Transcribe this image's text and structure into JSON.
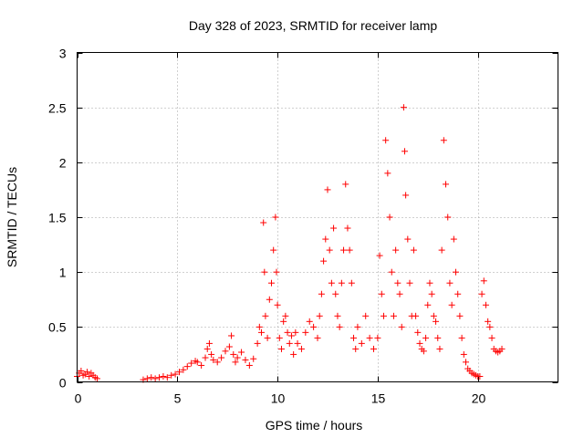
{
  "chart_data": {
    "type": "scatter",
    "title": "Day 328 of 2023, SRMTID for receiver lamp",
    "xlabel": "GPS time / hours",
    "ylabel": "SRMTID / TECUs",
    "xlim": [
      0,
      24
    ],
    "ylim": [
      0,
      3
    ],
    "xticks": [
      0,
      5,
      10,
      15,
      20
    ],
    "xtick_labels": [
      "0",
      "5",
      "10",
      "15",
      "20"
    ],
    "yticks": [
      0,
      0.5,
      1,
      1.5,
      2,
      2.5,
      3
    ],
    "ytick_labels": [
      "0",
      "0.5",
      "1",
      "1.5",
      "2",
      "2.5",
      "3"
    ],
    "grid": true,
    "marker": "+",
    "color": "#ff0000",
    "series": [
      {
        "name": "SRMTID",
        "x": [
          0.0,
          0.1,
          0.2,
          0.3,
          0.4,
          0.5,
          0.6,
          0.7,
          0.8,
          0.9,
          1.0,
          3.3,
          3.5,
          3.7,
          3.9,
          4.1,
          4.3,
          4.5,
          4.7,
          4.9,
          5.1,
          5.3,
          5.5,
          5.7,
          5.9,
          6.0,
          6.2,
          6.4,
          6.5,
          6.6,
          6.7,
          6.8,
          7.0,
          7.2,
          7.4,
          7.6,
          7.7,
          7.8,
          7.9,
          8.0,
          8.2,
          8.4,
          8.6,
          8.8,
          9.0,
          9.1,
          9.2,
          9.3,
          9.35,
          9.4,
          9.5,
          9.6,
          9.7,
          9.8,
          9.9,
          9.95,
          10.0,
          10.1,
          10.2,
          10.3,
          10.4,
          10.5,
          10.6,
          10.7,
          10.8,
          10.9,
          11.0,
          11.2,
          11.4,
          11.6,
          11.8,
          12.0,
          12.1,
          12.2,
          12.3,
          12.4,
          12.5,
          12.6,
          12.7,
          12.8,
          12.9,
          13.0,
          13.1,
          13.2,
          13.3,
          13.4,
          13.5,
          13.6,
          13.7,
          13.8,
          13.9,
          14.0,
          14.2,
          14.4,
          14.6,
          14.8,
          15.0,
          15.1,
          15.2,
          15.3,
          15.4,
          15.5,
          15.6,
          15.7,
          15.8,
          15.9,
          16.0,
          16.1,
          16.2,
          16.3,
          16.35,
          16.4,
          16.5,
          16.6,
          16.7,
          16.8,
          16.9,
          17.0,
          17.1,
          17.2,
          17.3,
          17.4,
          17.5,
          17.6,
          17.7,
          17.8,
          17.9,
          18.0,
          18.1,
          18.2,
          18.3,
          18.4,
          18.5,
          18.6,
          18.7,
          18.8,
          18.9,
          19.0,
          19.1,
          19.2,
          19.3,
          19.4,
          19.5,
          19.6,
          19.7,
          19.8,
          19.9,
          20.0,
          20.1,
          20.2,
          20.3,
          20.4,
          20.5,
          20.6,
          20.7,
          20.8,
          20.9,
          21.0,
          21.1,
          21.2
        ],
        "y": [
          0.05,
          0.08,
          0.1,
          0.06,
          0.07,
          0.09,
          0.05,
          0.08,
          0.06,
          0.04,
          0.03,
          0.02,
          0.03,
          0.04,
          0.03,
          0.04,
          0.05,
          0.04,
          0.06,
          0.07,
          0.09,
          0.11,
          0.14,
          0.17,
          0.19,
          0.18,
          0.15,
          0.22,
          0.3,
          0.35,
          0.25,
          0.2,
          0.18,
          0.22,
          0.28,
          0.32,
          0.42,
          0.25,
          0.18,
          0.22,
          0.27,
          0.2,
          0.15,
          0.21,
          0.35,
          0.5,
          0.45,
          1.45,
          1.0,
          0.6,
          0.4,
          0.75,
          0.9,
          1.2,
          1.5,
          1.0,
          0.7,
          0.4,
          0.3,
          0.55,
          0.6,
          0.45,
          0.35,
          0.42,
          0.25,
          0.45,
          0.35,
          0.3,
          0.45,
          0.55,
          0.5,
          0.4,
          0.6,
          0.8,
          1.1,
          1.3,
          1.75,
          1.2,
          0.9,
          1.4,
          0.8,
          0.6,
          0.5,
          0.9,
          1.2,
          1.8,
          1.4,
          1.2,
          0.9,
          0.4,
          0.3,
          0.5,
          0.35,
          0.6,
          0.4,
          0.3,
          0.4,
          1.15,
          0.8,
          0.6,
          2.2,
          1.9,
          1.5,
          1.0,
          0.6,
          1.2,
          0.9,
          0.8,
          0.5,
          2.5,
          2.1,
          1.7,
          1.3,
          0.9,
          0.6,
          1.2,
          0.6,
          0.45,
          0.35,
          0.3,
          0.28,
          0.4,
          0.7,
          0.9,
          0.8,
          0.6,
          0.55,
          0.4,
          0.3,
          1.2,
          2.2,
          1.8,
          1.5,
          0.9,
          0.7,
          1.3,
          1.0,
          0.8,
          0.6,
          0.4,
          0.25,
          0.18,
          0.12,
          0.1,
          0.08,
          0.07,
          0.06,
          0.05,
          0.05,
          0.8,
          0.92,
          0.7,
          0.55,
          0.5,
          0.4,
          0.3,
          0.28,
          0.27,
          0.28,
          0.3
        ]
      }
    ]
  }
}
